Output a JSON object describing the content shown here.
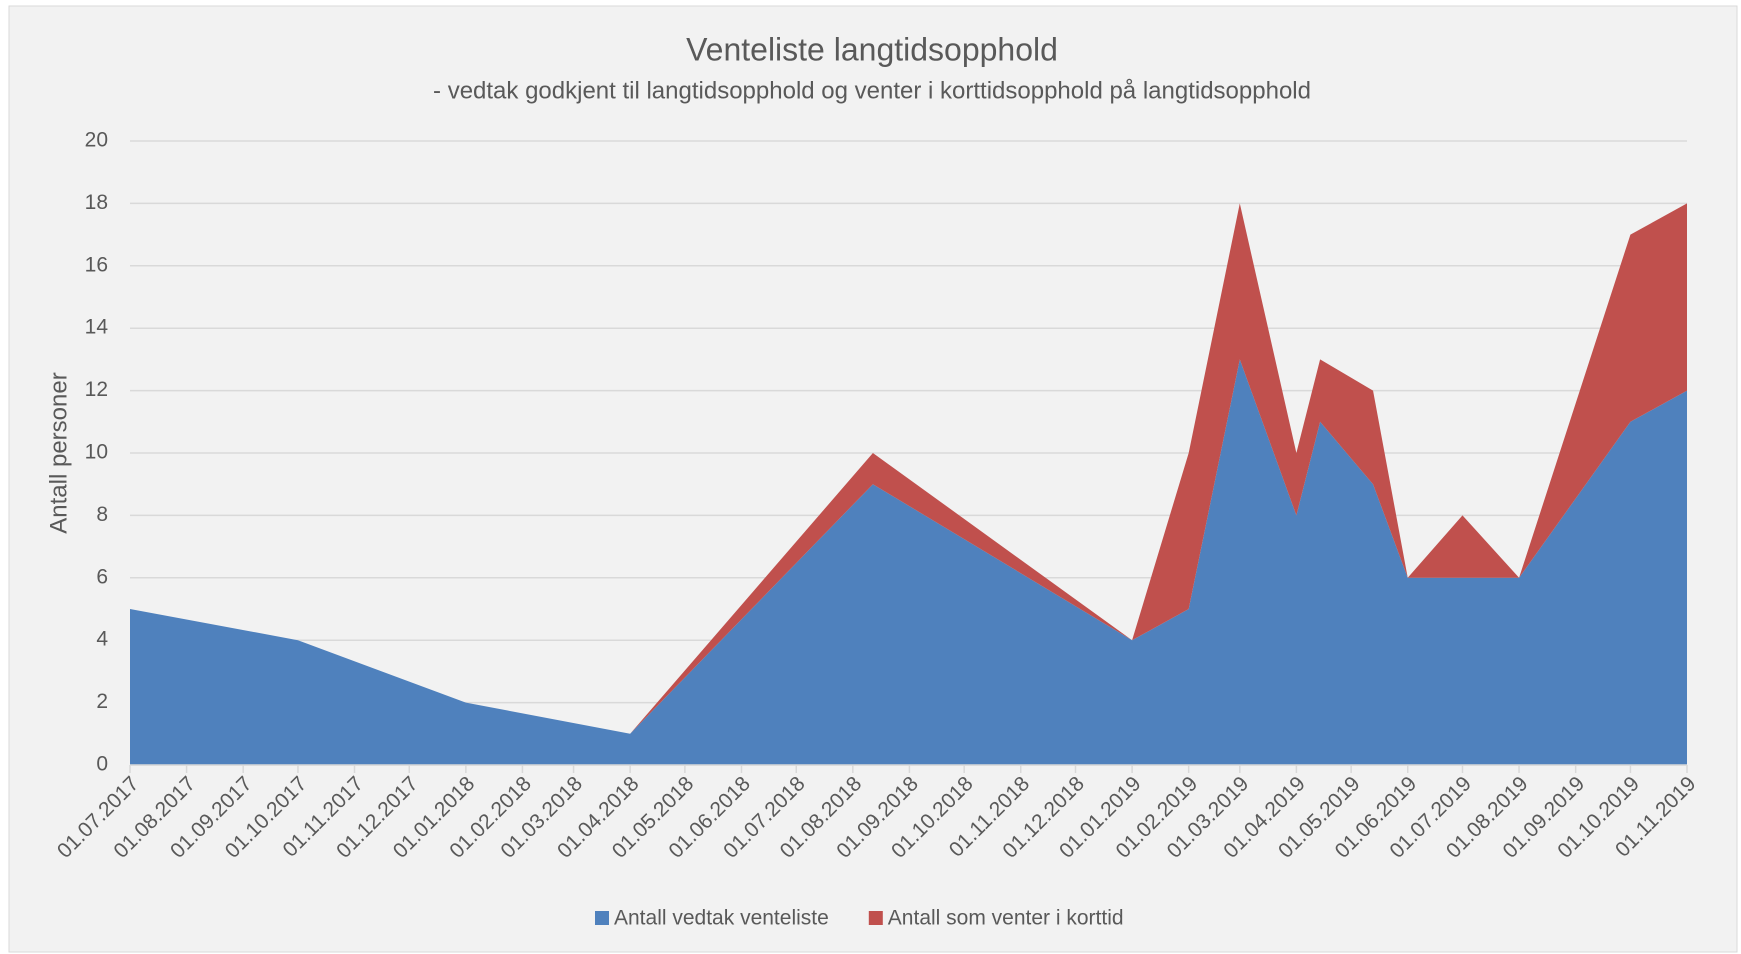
{
  "chart_data": {
    "type": "stacked-area",
    "title": "Venteliste langtidsopphold",
    "subtitle": "- vedtak godkjent til langtidsopphold og venter i korttidsopphold på langtidsopphold",
    "y_label": "Antall personer",
    "x": [
      "01.07.2017",
      "01.10.2017",
      "01.01.2018",
      "01.04.2018",
      "12.08.2018",
      "01.01.2019",
      "01.02.2019",
      "01.03.2019",
      "01.04.2019",
      "14.04.2019",
      "13.05.2019",
      "01.06.2019",
      "01.07.2019",
      "01.08.2019",
      "01.10.2019",
      "01.11.2019"
    ],
    "series": [
      {
        "name": "Antall vedtak venteliste",
        "color": "#4f81bd",
        "values": [
          5,
          4,
          2,
          1,
          9,
          4,
          5,
          13,
          8,
          11,
          9,
          6,
          6,
          6,
          11,
          12
        ]
      },
      {
        "name": "Antall som venter i korttid",
        "color": "#c0504d",
        "values": [
          0,
          0,
          0,
          0,
          1,
          0,
          5,
          5,
          2,
          2,
          3,
          0,
          2,
          0,
          6,
          6
        ]
      }
    ],
    "xlim": [
      "01.07.2017",
      "01.11.2019"
    ],
    "xticks": [
      "01.07.2017",
      "01.08.2017",
      "01.09.2017",
      "01.10.2017",
      "01.11.2017",
      "01.12.2017",
      "01.01.2018",
      "01.02.2018",
      "01.03.2018",
      "01.04.2018",
      "01.05.2018",
      "01.06.2018",
      "01.07.2018",
      "01.08.2018",
      "01.09.2018",
      "01.10.2018",
      "01.11.2018",
      "01.12.2018",
      "01.01.2019",
      "01.02.2019",
      "01.03.2019",
      "01.04.2019",
      "01.05.2019",
      "01.06.2019",
      "01.07.2019",
      "01.08.2019",
      "01.09.2019",
      "01.10.2019",
      "01.11.2019"
    ],
    "ylim": [
      0,
      20
    ],
    "yticks": [
      0,
      2,
      4,
      6,
      8,
      10,
      12,
      14,
      16,
      18,
      20
    ],
    "grid": true,
    "legend": "bottom"
  }
}
